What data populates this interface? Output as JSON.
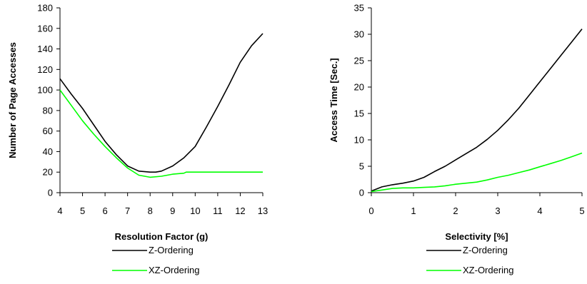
{
  "chart_data": [
    {
      "type": "line",
      "title": "",
      "xlabel": "Resolution Factor (g)",
      "ylabel": "Number of Page Accesses",
      "xlim": [
        4,
        13
      ],
      "ylim": [
        0,
        180
      ],
      "xticks": [
        4,
        5,
        6,
        7,
        8,
        9,
        10,
        11,
        12,
        13
      ],
      "yticks": [
        0,
        20,
        40,
        60,
        80,
        100,
        120,
        140,
        160,
        180
      ],
      "grid": false,
      "legend": "bottom",
      "series": [
        {
          "name": "Z-Ordering",
          "color": "#000000",
          "x": [
            4,
            4.5,
            5,
            5.5,
            6,
            6.5,
            7,
            7.5,
            8,
            8.25,
            8.5,
            9,
            9.5,
            10,
            10.5,
            11,
            11.5,
            12,
            12.5,
            13
          ],
          "y": [
            111,
            96,
            82,
            66,
            50,
            37,
            26,
            21,
            20,
            20,
            21,
            26,
            34,
            45,
            64,
            84,
            105,
            127,
            143,
            155
          ]
        },
        {
          "name": "XZ-Ordering",
          "color": "#00ff00",
          "x": [
            4,
            4.5,
            5,
            5.5,
            6,
            6.5,
            7,
            7.5,
            8,
            8.5,
            9,
            9.5,
            9.6,
            10,
            11,
            12,
            13
          ],
          "y": [
            100,
            85,
            70,
            57,
            45,
            34,
            24,
            17,
            15,
            16,
            18,
            19,
            20,
            20,
            20,
            20,
            20
          ]
        }
      ]
    },
    {
      "type": "line",
      "title": "",
      "xlabel": "Selectivity [%]",
      "ylabel": "Access Time [Sec.]",
      "xlim": [
        0,
        5
      ],
      "ylim": [
        0,
        35
      ],
      "xticks": [
        0,
        1,
        2,
        3,
        4,
        5
      ],
      "yticks": [
        0,
        5,
        10,
        15,
        20,
        25,
        30,
        35
      ],
      "grid": false,
      "legend": "bottom",
      "series": [
        {
          "name": "Z-Ordering",
          "color": "#000000",
          "x": [
            0,
            0.25,
            0.5,
            0.75,
            1,
            1.25,
            1.5,
            1.75,
            2,
            2.25,
            2.5,
            2.75,
            3,
            3.25,
            3.5,
            3.75,
            4,
            4.25,
            4.5,
            4.75,
            5
          ],
          "y": [
            0.3,
            1.1,
            1.5,
            1.8,
            2.2,
            2.9,
            4.0,
            5.0,
            6.2,
            7.4,
            8.6,
            10.1,
            11.8,
            13.8,
            16.0,
            18.5,
            21.0,
            23.5,
            26.0,
            28.5,
            31.0
          ]
        },
        {
          "name": "XZ-Ordering",
          "color": "#00ff00",
          "x": [
            0,
            0.25,
            0.5,
            0.75,
            1,
            1.25,
            1.5,
            1.75,
            2,
            2.25,
            2.5,
            2.75,
            3,
            3.25,
            3.5,
            3.75,
            4,
            4.25,
            4.5,
            4.75,
            5
          ],
          "y": [
            0.2,
            0.5,
            0.8,
            0.9,
            0.9,
            1.0,
            1.1,
            1.3,
            1.6,
            1.8,
            2.0,
            2.4,
            2.9,
            3.3,
            3.8,
            4.3,
            4.9,
            5.5,
            6.1,
            6.8,
            7.5
          ]
        }
      ]
    }
  ]
}
